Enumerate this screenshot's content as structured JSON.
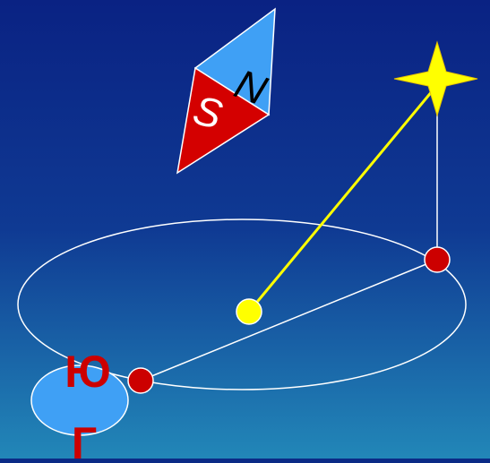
{
  "compass": {
    "north_label": "N",
    "south_label": "S",
    "north_color": "#3fa0f5",
    "south_color": "#d40000"
  },
  "ground": {
    "south_label_top": "Ю",
    "south_label_bottom": "Г",
    "label_color": "#cc0000",
    "patch_color": "#3fa0f5"
  },
  "colors": {
    "background_top": "#0a2283",
    "background_bottom": "#2287b8",
    "sight_line": "#ffff00",
    "construction_line": "#ffffff",
    "star_fill": "#ffff00",
    "point_red": "#cc0000",
    "point_yellow": "#ffff00"
  }
}
